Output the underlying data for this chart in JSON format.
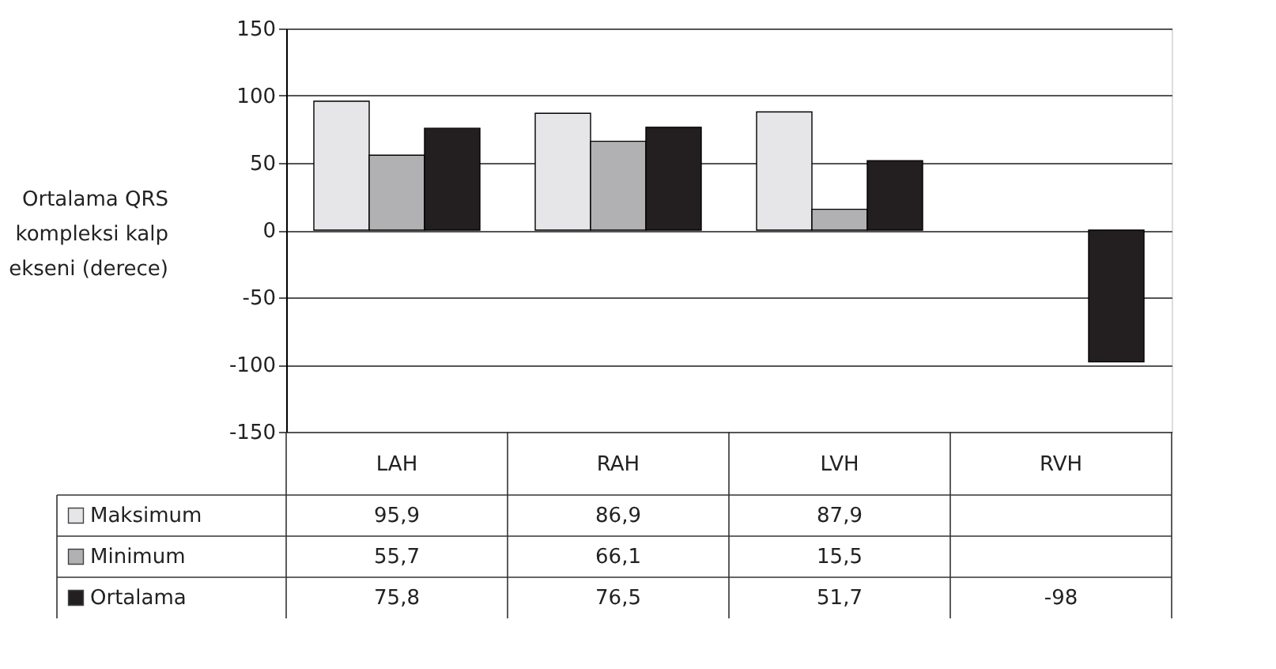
{
  "chart_data": {
    "type": "bar",
    "ylabel": "Ortalama QRS kompleksi kalp ekseni (derece)",
    "categories": [
      "LAH",
      "RAH",
      "LVH",
      "RVH"
    ],
    "series": [
      {
        "name": "Maksimum",
        "color": "#e6e6e8",
        "values": [
          95.9,
          86.9,
          87.9,
          null
        ],
        "value_labels": [
          "95,9",
          "86,9",
          "87,9",
          null
        ]
      },
      {
        "name": "Minimum",
        "color": "#b1b1b4",
        "values": [
          55.7,
          66.1,
          15.5,
          null
        ],
        "value_labels": [
          "55,7",
          "66,1",
          "15,5",
          null
        ]
      },
      {
        "name": "Ortalama",
        "color": "#231f20",
        "values": [
          75.8,
          76.5,
          51.7,
          -98
        ],
        "value_labels": [
          "75,8",
          "76,5",
          "51,7",
          "-98"
        ]
      }
    ],
    "ylim": [
      -150,
      150
    ],
    "yticks": [
      -150,
      -100,
      -50,
      0,
      50,
      100,
      150
    ],
    "grid": "y",
    "legend": "bottom left"
  }
}
